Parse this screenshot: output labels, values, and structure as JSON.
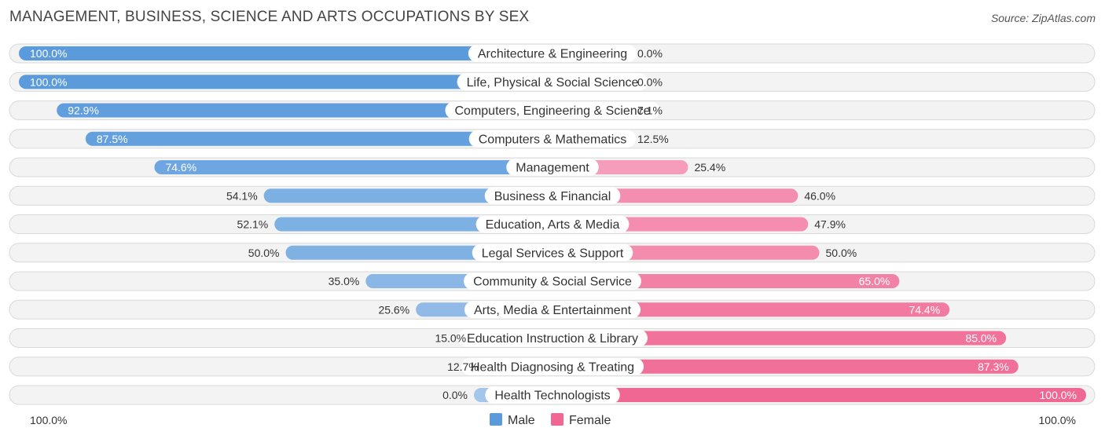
{
  "title": "MANAGEMENT, BUSINESS, SCIENCE AND ARTS OCCUPATIONS BY SEX",
  "source": "Source: ZipAtlas.com",
  "colors": {
    "male_strong": "#5b9bdc",
    "male_light": "#a3c6ea",
    "female_strong": "#f06793",
    "female_light": "#f7b0c8"
  },
  "chart_data": {
    "type": "bar",
    "orientation": "horizontal-diverging",
    "categories": [
      "Architecture & Engineering",
      "Life, Physical & Social Science",
      "Computers, Engineering & Science",
      "Computers & Mathematics",
      "Management",
      "Business & Financial",
      "Education, Arts & Media",
      "Legal Services & Support",
      "Community & Social Service",
      "Arts, Media & Entertainment",
      "Education Instruction & Library",
      "Health Diagnosing & Treating",
      "Health Technologists"
    ],
    "series": [
      {
        "name": "Male",
        "values": [
          100.0,
          100.0,
          92.9,
          87.5,
          74.6,
          54.1,
          52.1,
          50.0,
          35.0,
          25.6,
          15.0,
          12.7,
          0.0
        ]
      },
      {
        "name": "Female",
        "values": [
          0.0,
          0.0,
          7.1,
          12.5,
          25.4,
          46.0,
          47.9,
          50.0,
          65.0,
          74.4,
          85.0,
          87.3,
          100.0
        ]
      }
    ],
    "value_labels": {
      "male": [
        "100.0%",
        "100.0%",
        "92.9%",
        "87.5%",
        "74.6%",
        "54.1%",
        "52.1%",
        "50.0%",
        "35.0%",
        "25.6%",
        "15.0%",
        "12.7%",
        "0.0%"
      ],
      "female": [
        "0.0%",
        "0.0%",
        "7.1%",
        "12.5%",
        "25.4%",
        "46.0%",
        "47.9%",
        "50.0%",
        "65.0%",
        "74.4%",
        "85.0%",
        "87.3%",
        "100.0%"
      ]
    },
    "axis": {
      "left_label": "100.0%",
      "right_label": "100.0%"
    },
    "legend": [
      "Male",
      "Female"
    ],
    "legend_position": "bottom-center",
    "xlim": [
      0,
      100
    ]
  }
}
